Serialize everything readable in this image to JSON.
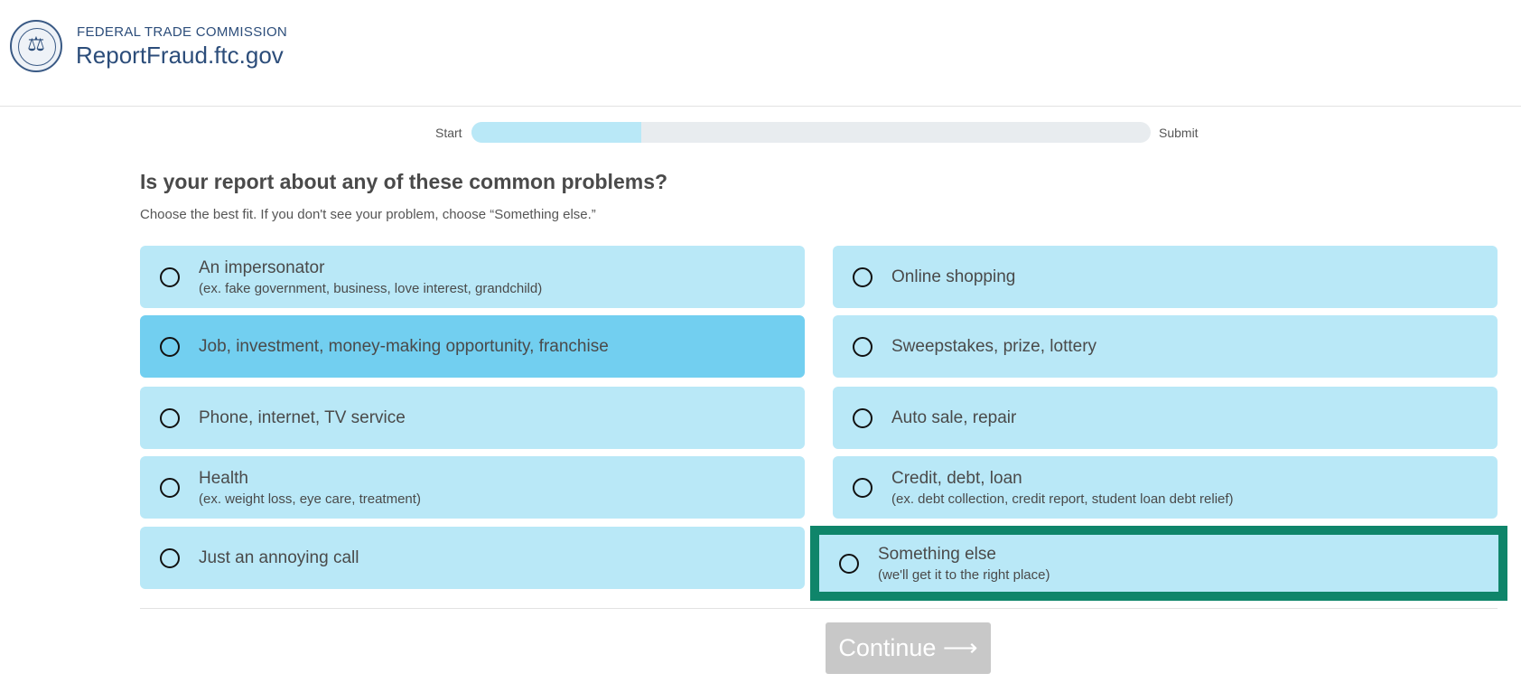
{
  "header": {
    "agency": "FEDERAL TRADE COMMISSION",
    "site": "ReportFraud.ftc.gov"
  },
  "progress": {
    "start_label": "Start",
    "end_label": "Submit",
    "fraction": 0.25
  },
  "question": {
    "title": "Is your report about any of these common problems?",
    "subtitle": "Choose the best fit. If you don't see your problem, choose “Something else.”"
  },
  "options": [
    {
      "label": "An impersonator",
      "hint": "(ex. fake government, business, love interest, grandchild)"
    },
    {
      "label": "Online shopping",
      "hint": ""
    },
    {
      "label": "Job, investment, money-making opportunity, franchise",
      "hint": ""
    },
    {
      "label": "Sweepstakes, prize, lottery",
      "hint": ""
    },
    {
      "label": "Phone, internet, TV service",
      "hint": ""
    },
    {
      "label": "Auto sale, repair",
      "hint": ""
    },
    {
      "label": "Health",
      "hint": "(ex. weight loss, eye care, treatment)"
    },
    {
      "label": "Credit, debt, loan",
      "hint": "(ex. debt collection, credit report, student loan debt relief)"
    },
    {
      "label": "Just an annoying call",
      "hint": ""
    },
    {
      "label": "Something else",
      "hint": "(we'll get it to the right place)"
    }
  ],
  "continue_label": "Continue ⟶",
  "colors": {
    "option_bg": "#b9e8f7",
    "option_hover": "#72cff0",
    "focus_ring": "#0f856a",
    "brand": "#2c4d7a"
  }
}
